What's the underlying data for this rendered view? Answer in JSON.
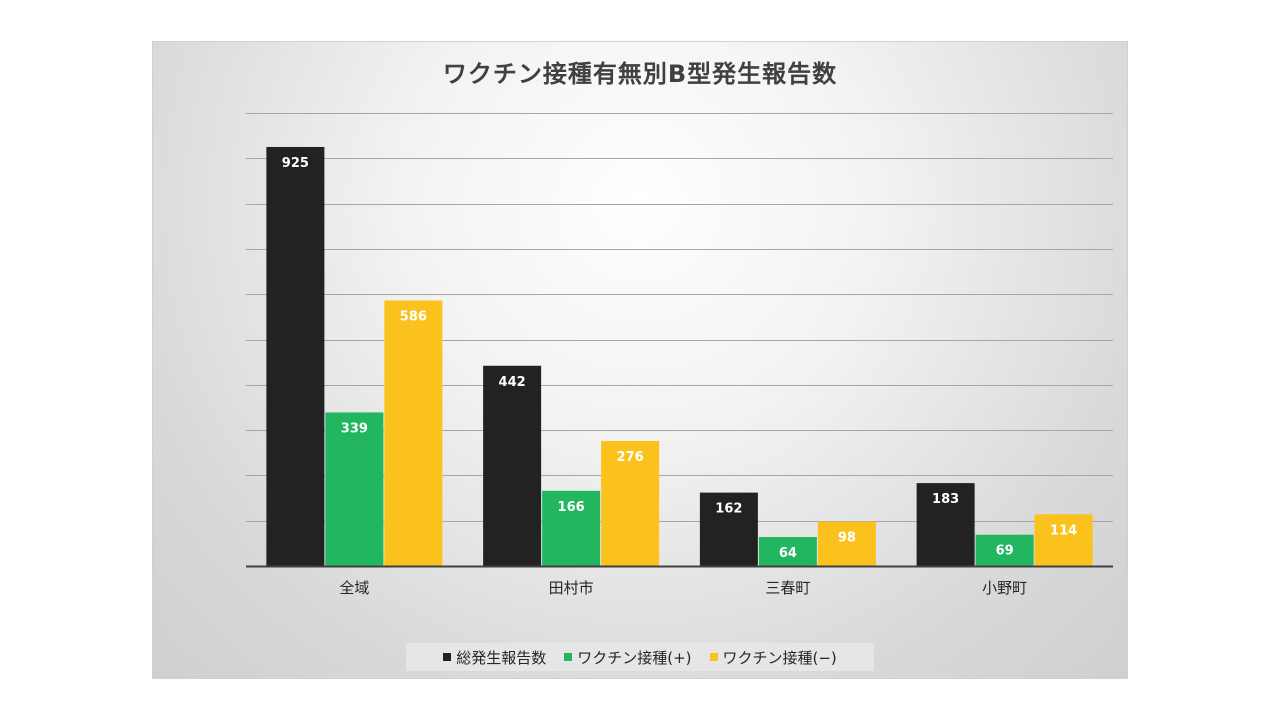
{
  "chart_data": {
    "type": "bar",
    "title": "ワクチン接種有無別B型発生報告数",
    "categories": [
      "全域",
      "田村市",
      "三春町",
      "小野町"
    ],
    "series": [
      {
        "name": "総発生報告数",
        "color": "#222222",
        "values": [
          925,
          442,
          162,
          183
        ]
      },
      {
        "name": "ワクチン接種(+)",
        "color": "#21b65f",
        "values": [
          339,
          166,
          64,
          69
        ]
      },
      {
        "name": "ワクチン接種(−)",
        "color": "#fbc21d",
        "values": [
          586,
          276,
          98,
          114
        ]
      }
    ],
    "ylim": [
      0,
      1000
    ],
    "grid": true,
    "y_tick_labels_shown": false,
    "legend_position": "bottom",
    "data_label_color": "#ffffff"
  },
  "legend": {
    "items": [
      {
        "label": "総発生報告数",
        "color": "#222222"
      },
      {
        "label": "ワクチン接種(+)",
        "color": "#21b65f"
      },
      {
        "label": "ワクチン接種(−)",
        "color": "#fbc21d"
      }
    ]
  }
}
